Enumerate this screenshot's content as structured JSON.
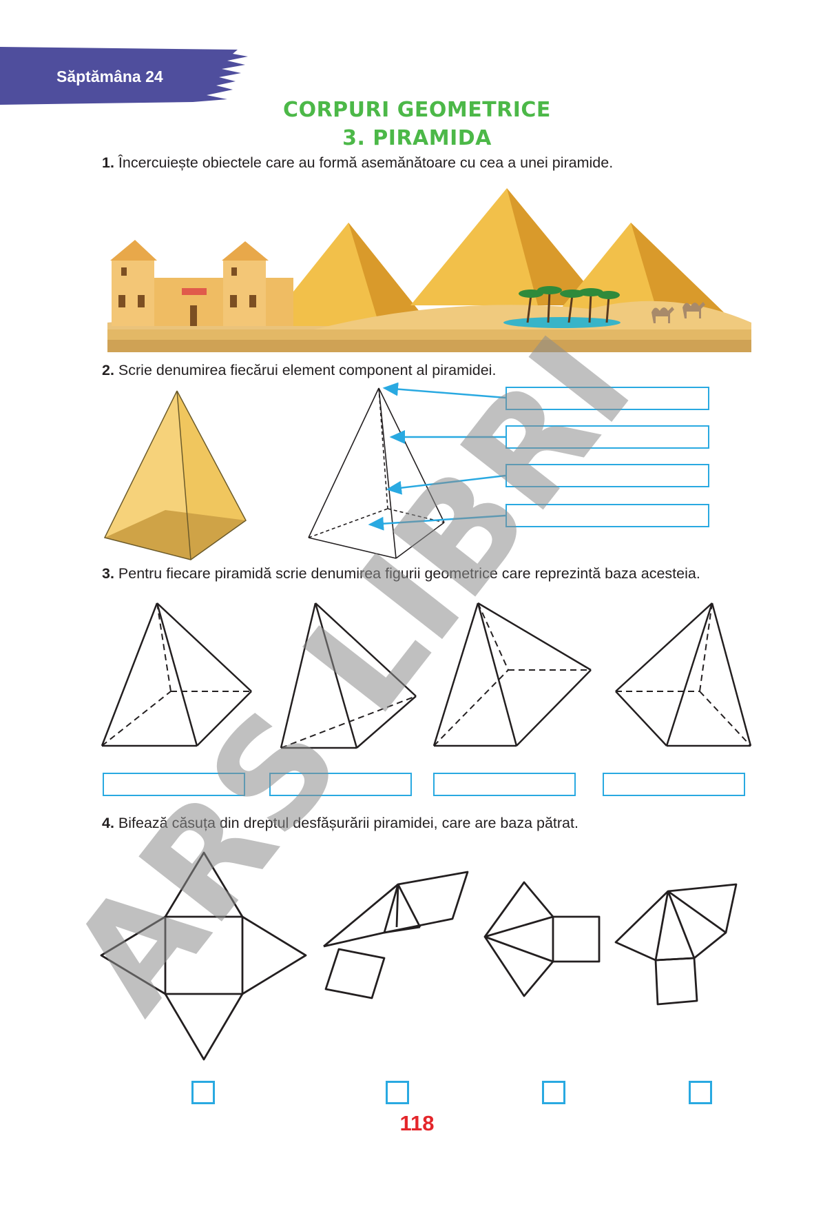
{
  "header": {
    "week": "Săptămâna 24",
    "banner_color": "#4f4e9d"
  },
  "title": {
    "line1": "CORPURI GEOMETRICE",
    "line2": "3. PIRAMIDA",
    "color": "#4cb848"
  },
  "exercises": [
    {
      "number": "1.",
      "text": " Încercuiește obiectele care au formă asemănătoare cu cea a unei piramide."
    },
    {
      "number": "2.",
      "text": " Scrie denumirea fiecărui element component al piramidei."
    },
    {
      "number": "3.",
      "text": " Pentru fiecare piramidă scrie denumirea figurii geometrice care reprezintă baza acesteia."
    },
    {
      "number": "4.",
      "text": " Bifează căsuța din dreptul desfășurării piramidei, care are baza pătrat."
    }
  ],
  "illustration": {
    "name": "pyramids-desert-scene"
  },
  "page_number": "118",
  "watermark": "ARS LIBRI",
  "colors": {
    "answer_box": "#29a9e1",
    "page_number": "#e4262b",
    "watermark": "#8c8c8c"
  }
}
